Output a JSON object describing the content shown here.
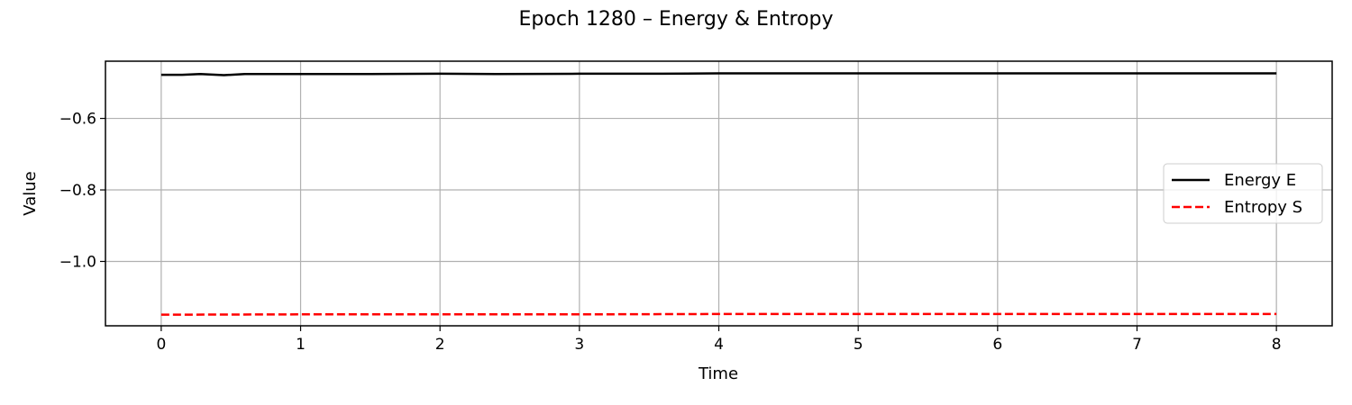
{
  "chart_data": {
    "type": "line",
    "title": "Epoch 1280 – Energy & Entropy",
    "xlabel": "Time",
    "ylabel": "Value",
    "xlim": [
      -0.4,
      8.4
    ],
    "ylim": [
      -1.18,
      -0.44
    ],
    "xticks": [
      0,
      1,
      2,
      3,
      4,
      5,
      6,
      7,
      8
    ],
    "xtick_labels": [
      "0",
      "1",
      "2",
      "3",
      "4",
      "5",
      "6",
      "7",
      "8"
    ],
    "yticks": [
      -0.6,
      -0.8,
      -1.0
    ],
    "ytick_labels": [
      "−0.6",
      "−0.8",
      "−1.0"
    ],
    "grid": true,
    "legend_position": "center-right",
    "series": [
      {
        "name": "Energy E",
        "color": "#000000",
        "dash": "solid",
        "x": [
          0,
          0.15,
          0.28,
          0.45,
          0.6,
          1,
          1.5,
          2,
          2.4,
          3,
          3.6,
          4,
          5,
          6,
          7,
          8
        ],
        "y": [
          -0.478,
          -0.478,
          -0.476,
          -0.479,
          -0.476,
          -0.476,
          -0.476,
          -0.475,
          -0.476,
          -0.475,
          -0.475,
          -0.474,
          -0.474,
          -0.474,
          -0.474,
          -0.474
        ]
      },
      {
        "name": "Entropy S",
        "color": "#ff0000",
        "dash": "dashed",
        "x": [
          0,
          1,
          2,
          3,
          4,
          5,
          6,
          7,
          8
        ],
        "y": [
          -1.149,
          -1.148,
          -1.148,
          -1.148,
          -1.147,
          -1.147,
          -1.147,
          -1.147,
          -1.147
        ]
      }
    ]
  }
}
